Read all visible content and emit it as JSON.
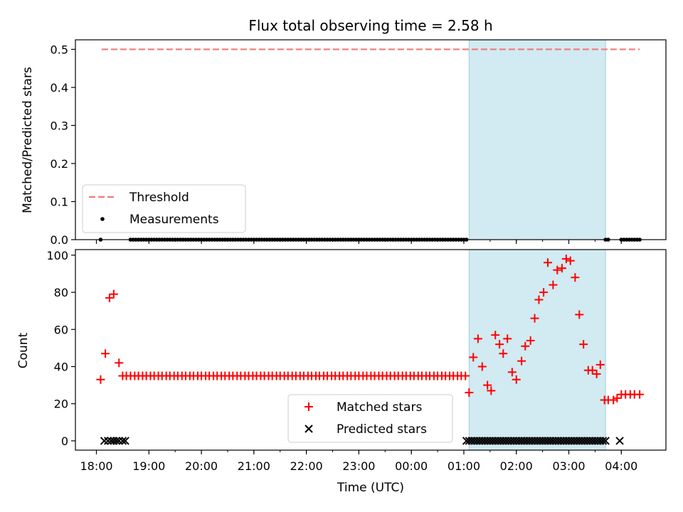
{
  "chart_data": [
    {
      "type": "scatter",
      "title": "Flux total observing time = 2.58 h",
      "xlabel": "",
      "ylabel": "Matched/Predicted stars",
      "ylim": [
        0,
        0.525
      ],
      "yticks": [
        "0.0",
        "0.1",
        "0.2",
        "0.3",
        "0.4",
        "0.5"
      ],
      "threshold": 0.5,
      "threshold_range_h": [
        18.1,
        28.35
      ],
      "highlight_range_h": [
        25.1,
        27.7
      ],
      "legend": {
        "position": "lower-left",
        "threshold_label": "Threshold",
        "measurements_label": "Measurements"
      },
      "measurements": {
        "x_h": [
          18.08,
          18.65,
          18.7,
          18.75,
          18.8,
          18.85,
          18.9,
          18.95,
          19.0,
          19.05,
          19.1,
          19.15,
          19.2,
          19.25,
          19.3,
          19.35,
          19.4,
          19.45,
          19.5,
          19.55,
          19.6,
          19.65,
          19.7,
          19.75,
          19.8,
          19.85,
          19.9,
          19.95,
          20.0,
          20.05,
          20.1,
          20.15,
          20.2,
          20.25,
          20.3,
          20.35,
          20.4,
          20.45,
          20.5,
          20.55,
          20.6,
          20.65,
          20.7,
          20.75,
          20.8,
          20.85,
          20.9,
          20.95,
          21.0,
          21.05,
          21.1,
          21.15,
          21.2,
          21.25,
          21.3,
          21.35,
          21.4,
          21.45,
          21.5,
          21.55,
          21.6,
          21.65,
          21.7,
          21.75,
          21.8,
          21.85,
          21.9,
          21.95,
          22.0,
          22.05,
          22.1,
          22.15,
          22.2,
          22.25,
          22.3,
          22.35,
          22.4,
          22.45,
          22.5,
          22.55,
          22.6,
          22.65,
          22.7,
          22.75,
          22.8,
          22.85,
          22.9,
          22.95,
          23.0,
          23.05,
          23.1,
          23.15,
          23.2,
          23.25,
          23.3,
          23.35,
          23.4,
          23.45,
          23.5,
          23.55,
          23.6,
          23.65,
          23.7,
          23.75,
          23.8,
          23.85,
          23.9,
          23.95,
          24.0,
          24.05,
          24.1,
          24.15,
          24.2,
          24.25,
          24.3,
          24.35,
          24.4,
          24.45,
          24.5,
          24.55,
          24.6,
          24.65,
          24.7,
          24.75,
          24.8,
          24.85,
          24.9,
          24.95,
          25.0,
          25.05,
          27.7,
          27.75,
          28.0,
          28.05,
          28.1,
          28.15,
          28.2,
          28.25,
          28.3,
          28.35
        ],
        "y": 0
      }
    },
    {
      "type": "scatter",
      "title": "",
      "xlabel": "Time (UTC)",
      "ylabel": "Count",
      "ylim": [
        -5,
        103
      ],
      "yticks": [
        "0",
        "20",
        "40",
        "60",
        "80",
        "100"
      ],
      "xlim_h": [
        17.6,
        28.85
      ],
      "xticks_h": [
        18,
        19,
        20,
        21,
        22,
        23,
        24,
        25,
        26,
        27,
        28
      ],
      "xtick_labels": [
        "18:00",
        "19:00",
        "20:00",
        "21:00",
        "22:00",
        "23:00",
        "00:00",
        "01:00",
        "02:00",
        "03:00",
        "04:00"
      ],
      "minor_ticks_h": [
        19.5,
        20.0,
        20.5,
        21.0,
        21.5,
        22.0,
        22.5,
        23.0,
        23.5,
        24.0,
        24.5,
        25.0,
        25.5,
        26.0,
        26.5,
        27.0,
        27.5,
        28.0
      ],
      "highlight_range_h": [
        25.1,
        27.7
      ],
      "legend": {
        "position": "lower-center",
        "matched_label": "Matched stars",
        "predicted_label": "Predicted stars"
      },
      "series": [
        {
          "name": "Matched stars",
          "x_h": [
            18.08,
            18.17,
            18.25,
            18.33,
            18.43,
            18.5,
            18.57,
            18.65,
            18.73,
            18.8,
            18.88,
            18.95,
            19.03,
            19.1,
            19.18,
            19.25,
            19.33,
            19.4,
            19.48,
            19.55,
            19.63,
            19.7,
            19.78,
            19.85,
            19.93,
            20.0,
            20.08,
            20.15,
            20.23,
            20.3,
            20.38,
            20.45,
            20.53,
            20.6,
            20.68,
            20.75,
            20.83,
            20.9,
            20.98,
            21.05,
            21.13,
            21.2,
            21.28,
            21.35,
            21.43,
            21.5,
            21.58,
            21.65,
            21.73,
            21.8,
            21.88,
            21.95,
            22.03,
            22.1,
            22.18,
            22.25,
            22.33,
            22.4,
            22.48,
            22.55,
            22.63,
            22.7,
            22.78,
            22.85,
            22.93,
            23.0,
            23.08,
            23.15,
            23.23,
            23.3,
            23.38,
            23.45,
            23.53,
            23.6,
            23.68,
            23.75,
            23.83,
            23.9,
            23.98,
            24.05,
            24.13,
            24.2,
            24.28,
            24.35,
            24.43,
            24.5,
            24.58,
            24.65,
            24.73,
            24.8,
            24.88,
            24.95,
            25.03,
            25.1,
            25.18,
            25.27,
            25.35,
            25.45,
            25.52,
            25.6,
            25.68,
            25.75,
            25.83,
            25.92,
            26.0,
            26.1,
            26.17,
            26.27,
            26.35,
            26.43,
            26.52,
            26.6,
            26.7,
            26.78,
            26.87,
            26.95,
            27.03,
            27.12,
            27.2,
            27.28,
            27.37,
            27.45,
            27.53,
            27.6,
            27.68,
            27.75,
            27.85,
            27.92,
            28.0,
            28.08,
            28.17,
            28.25,
            28.35
          ],
          "values": [
            33,
            47,
            77,
            79,
            42,
            35,
            35,
            35,
            35,
            35,
            35,
            35,
            35,
            35,
            35,
            35,
            35,
            35,
            35,
            35,
            35,
            35,
            35,
            35,
            35,
            35,
            35,
            35,
            35,
            35,
            35,
            35,
            35,
            35,
            35,
            35,
            35,
            35,
            35,
            35,
            35,
            35,
            35,
            35,
            35,
            35,
            35,
            35,
            35,
            35,
            35,
            35,
            35,
            35,
            35,
            35,
            35,
            35,
            35,
            35,
            35,
            35,
            35,
            35,
            35,
            35,
            35,
            35,
            35,
            35,
            35,
            35,
            35,
            35,
            35,
            35,
            35,
            35,
            35,
            35,
            35,
            35,
            35,
            35,
            35,
            35,
            35,
            35,
            35,
            35,
            35,
            35,
            35,
            26,
            45,
            55,
            40,
            30,
            27,
            57,
            52,
            47,
            55,
            37,
            33,
            43,
            51,
            54,
            66,
            76,
            80,
            96,
            84,
            92,
            93,
            98,
            97,
            88,
            68,
            52,
            38,
            38,
            36,
            41,
            22,
            22,
            22,
            23,
            25,
            25,
            25,
            25,
            25
          ],
          "color": "#ff0000",
          "marker": "+"
        },
        {
          "name": "Predicted stars",
          "x_h": [
            18.15,
            18.22,
            18.28,
            18.33,
            18.38,
            18.43,
            18.5,
            18.55,
            25.05,
            25.1,
            25.15,
            25.2,
            25.25,
            25.3,
            25.35,
            25.4,
            25.45,
            25.5,
            25.55,
            25.6,
            25.65,
            25.7,
            25.75,
            25.8,
            25.85,
            25.9,
            25.95,
            26.0,
            26.05,
            26.1,
            26.15,
            26.2,
            26.25,
            26.3,
            26.35,
            26.4,
            26.45,
            26.5,
            26.55,
            26.6,
            26.65,
            26.7,
            26.75,
            26.8,
            26.85,
            26.9,
            26.95,
            27.0,
            27.05,
            27.1,
            27.15,
            27.2,
            27.25,
            27.3,
            27.35,
            27.4,
            27.45,
            27.5,
            27.55,
            27.6,
            27.65,
            27.7,
            27.97
          ],
          "values": 0,
          "color": "#000000",
          "marker": "x"
        }
      ]
    }
  ]
}
